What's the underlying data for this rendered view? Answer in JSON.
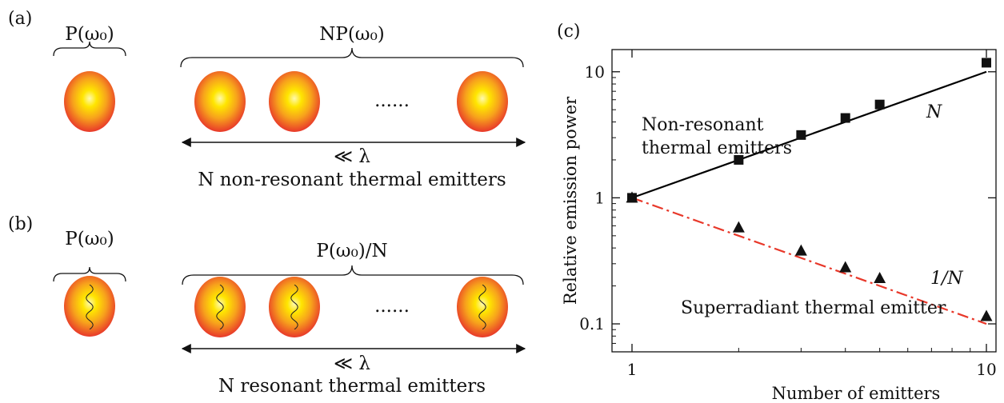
{
  "panels": {
    "a": {
      "label": "(a)",
      "single_label": "P(ω₀)",
      "group_label": "NP(ω₀)",
      "dots": "......",
      "spacing_label": "≪ λ",
      "caption": "N non-resonant thermal emitters"
    },
    "b": {
      "label": "(b)",
      "single_label": "P(ω₀)",
      "group_label": "P(ω₀)/N",
      "dots": "......",
      "spacing_label": "≪ λ",
      "caption": "N resonant thermal emitters"
    },
    "c": {
      "label": "(c)"
    }
  },
  "colors": {
    "emitter_core": "#ffe600",
    "emitter_edge": "#e8382a",
    "line_nonresonant": "#000000",
    "line_superradiant": "#e8382a"
  },
  "chart_data": {
    "type": "scatter",
    "xlabel": "Number of emitters",
    "ylabel": "Relative emission power",
    "x_scale": "log",
    "y_scale": "log",
    "xlim": [
      1,
      10
    ],
    "ylim": [
      0.06,
      15
    ],
    "x_ticks": [
      1,
      10
    ],
    "x_tick_labels": [
      "1",
      "10"
    ],
    "y_ticks": [
      0.1,
      1,
      10
    ],
    "y_tick_labels": [
      "0.1",
      "1",
      "10"
    ],
    "series": [
      {
        "marker": "square",
        "x": [
          1,
          2,
          3,
          4,
          5,
          10
        ],
        "y": [
          1.0,
          2.0,
          3.15,
          4.3,
          5.5,
          11.8
        ]
      },
      {
        "marker": "triangle",
        "x": [
          1,
          2,
          3,
          4,
          5,
          10
        ],
        "y": [
          1.0,
          0.58,
          0.38,
          0.28,
          0.23,
          0.115
        ]
      }
    ],
    "fit_lines": [
      {
        "label": "N",
        "style": "solid",
        "x": [
          1,
          10
        ],
        "y": [
          1,
          10
        ]
      },
      {
        "label": "1/N",
        "style": "dash-dot",
        "x": [
          1,
          10
        ],
        "y": [
          1,
          0.1
        ]
      }
    ],
    "annotations": [
      "Non-resonant",
      "thermal emitters",
      "Superradiant thermal emitter"
    ]
  }
}
